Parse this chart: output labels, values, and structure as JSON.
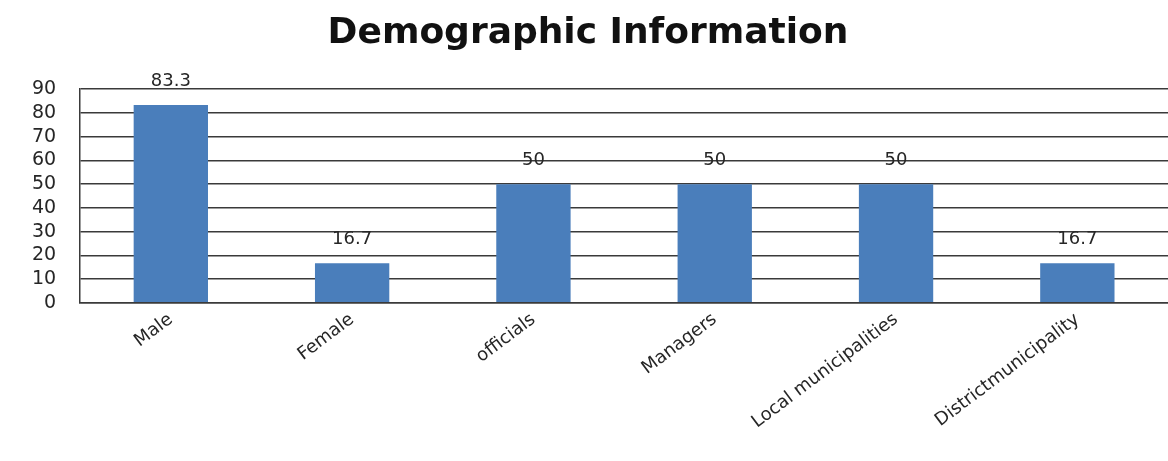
{
  "chart_data": {
    "type": "bar",
    "title": "Demographic Information",
    "categories": [
      "Male",
      "Female",
      "officials",
      "Managers",
      "Local municipalities",
      "Districtmunicipality"
    ],
    "values": [
      83.3,
      16.7,
      50,
      50,
      50,
      16.7
    ],
    "color": "#4a7ebb",
    "ylim": [
      0,
      90
    ],
    "yticks": [
      0,
      10,
      20,
      30,
      40,
      50,
      60,
      70,
      80,
      90
    ],
    "grid": "y",
    "data_labels": true
  }
}
